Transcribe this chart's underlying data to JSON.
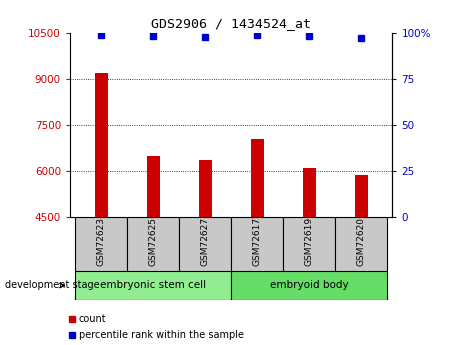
{
  "title": "GDS2906 / 1434524_at",
  "samples": [
    "GSM72623",
    "GSM72625",
    "GSM72627",
    "GSM72617",
    "GSM72619",
    "GSM72620"
  ],
  "counts": [
    9200,
    6480,
    6380,
    7050,
    6100,
    5880
  ],
  "percentiles": [
    99,
    98.5,
    97.5,
    99,
    98,
    97
  ],
  "ylim_left": [
    4500,
    10500
  ],
  "ylim_right": [
    0,
    100
  ],
  "yticks_left": [
    4500,
    6000,
    7500,
    9000,
    10500
  ],
  "yticks_right": [
    0,
    25,
    50,
    75,
    100
  ],
  "ytick_labels_right": [
    "0",
    "25",
    "50",
    "75",
    "100%"
  ],
  "bar_color": "#cc0000",
  "dot_color": "#0000cc",
  "grid_color": "#000000",
  "bg_color": "#ffffff",
  "groups": [
    {
      "label": "embryonic stem cell",
      "color": "#90ee90"
    },
    {
      "label": "embryoid body",
      "color": "#66dd66"
    }
  ],
  "left_tick_color": "#cc0000",
  "right_tick_color": "#0000cc",
  "stage_label": "development stage",
  "legend_count_label": "count",
  "legend_pct_label": "percentile rank within the sample",
  "sample_box_color": "#c8c8c8",
  "group_colors": [
    "#90ee90",
    "#66dd66"
  ],
  "bar_width": 0.25
}
